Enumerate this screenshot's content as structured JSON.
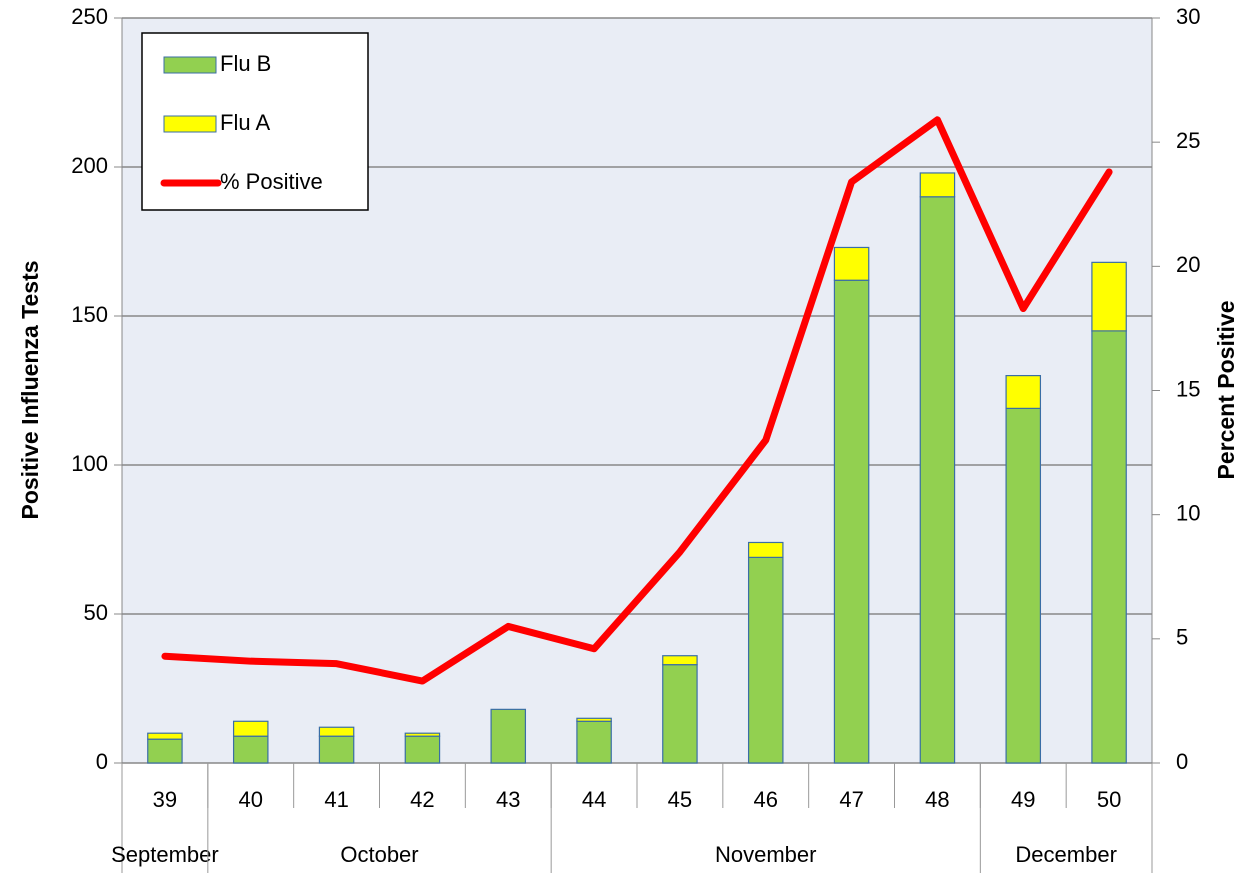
{
  "chart_data": {
    "type": "bar",
    "stacked": true,
    "y_label": "Positive Influenza Tests",
    "y2_label": "Percent Positive",
    "categories": [
      "39",
      "40",
      "41",
      "42",
      "43",
      "44",
      "45",
      "46",
      "47",
      "48",
      "49",
      "50"
    ],
    "category_groups": [
      "September",
      "October",
      null,
      null,
      null,
      "November",
      null,
      null,
      null,
      null,
      "December",
      null
    ],
    "series": [
      {
        "name": "Flu B",
        "type": "bar",
        "color": "#92d050",
        "values": [
          8,
          9,
          9,
          9,
          18,
          14,
          33,
          69,
          162,
          190,
          119,
          145
        ]
      },
      {
        "name": "Flu A",
        "type": "bar",
        "color": "#ffff00",
        "values": [
          2,
          5,
          3,
          1,
          0,
          1,
          3,
          5,
          11,
          8,
          11,
          23
        ]
      },
      {
        "name": "% Positive",
        "type": "line",
        "axis": "y2",
        "color": "#ff0000",
        "values": [
          4.3,
          4.1,
          4.0,
          3.3,
          5.5,
          4.6,
          8.5,
          13.0,
          23.4,
          25.9,
          18.3,
          23.8
        ]
      }
    ],
    "ylim": [
      0,
      250
    ],
    "yticks": [
      0,
      50,
      100,
      150,
      200,
      250
    ],
    "y2lim": [
      0,
      30
    ],
    "y2ticks": [
      0,
      5,
      10,
      15,
      20,
      25,
      30
    ],
    "grid": true,
    "legend": "top-left"
  }
}
